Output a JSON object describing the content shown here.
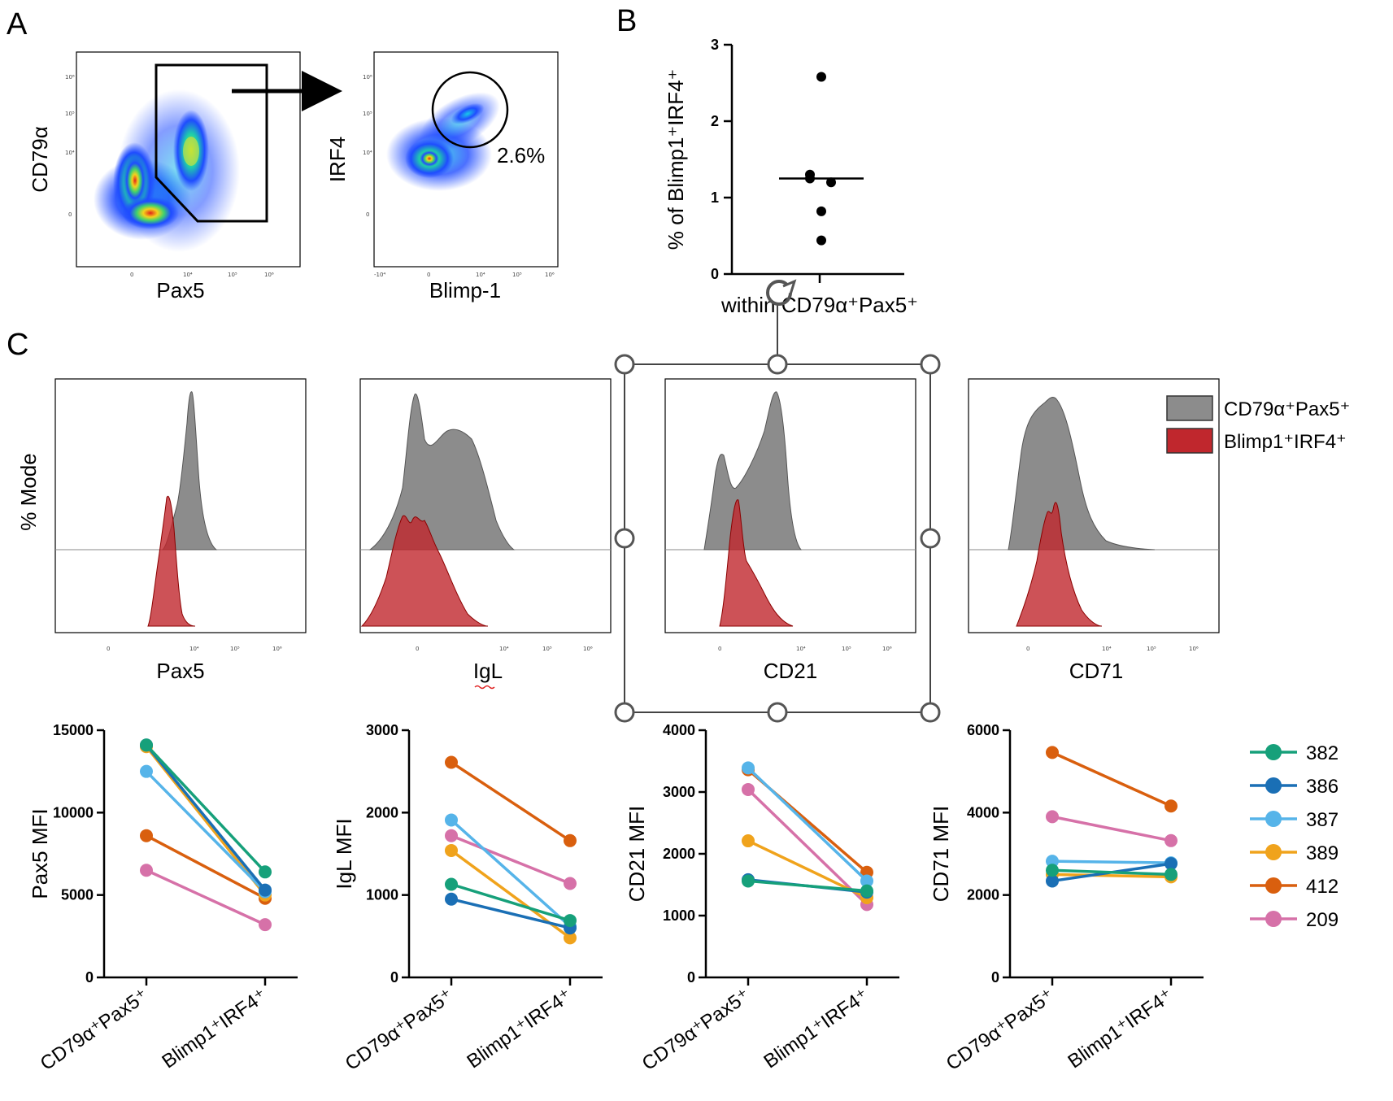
{
  "panels": {
    "A": "A",
    "B": "B",
    "C": "C"
  },
  "panel_a": {
    "plot1": {
      "ylabel": "CD79α",
      "xlabel": "Pax5",
      "yticks": [
        "10⁶",
        "10⁵",
        "10⁴",
        "0"
      ],
      "xticks": [
        "0",
        "10⁴",
        "10⁵",
        "10⁶"
      ]
    },
    "plot2": {
      "ylabel": "IRF4",
      "xlabel": "Blimp-1",
      "gate_pct": "2.6%",
      "yticks": [
        "10⁶",
        "10⁵",
        "10⁴",
        "0"
      ],
      "xticks": [
        "-10⁴",
        "0",
        "10⁴",
        "10⁵",
        "10⁶"
      ]
    }
  },
  "colors": {
    "gray_hist": "#8c8c8c",
    "red_hist": "#c0272d",
    "382": "#16a07a",
    "386": "#1a6fb5",
    "387": "#56b4e9",
    "389": "#f0a31c",
    "412": "#d95f0e",
    "209": "#d671a8"
  },
  "overlay": {
    "icon": "rotate-handle-icon"
  },
  "panel_c": {
    "ylabel": "% Mode",
    "legend": [
      {
        "label": "CD79α⁺Pax5⁺",
        "color": "#8c8c8c"
      },
      {
        "label": "Blimp1⁺IRF4⁺",
        "color": "#c0272d"
      }
    ],
    "histograms": [
      {
        "xlabel": "Pax5",
        "ticks": [
          "0",
          "10⁴",
          "10⁵",
          "10⁶"
        ]
      },
      {
        "xlabel": "IgL",
        "ticks": [
          "0",
          "10⁴",
          "10⁵",
          "10⁶"
        ]
      },
      {
        "xlabel": "CD21",
        "ticks": [
          "0",
          "10⁴",
          "10⁵",
          "10⁶"
        ]
      },
      {
        "xlabel": "CD71",
        "ticks": [
          "0",
          "10⁴",
          "10⁵",
          "10⁶"
        ]
      }
    ]
  },
  "chart_data": [
    {
      "type": "scatter",
      "ylabel": "% of Blimp1⁺IRF4⁺",
      "xlabel": "within CD79α⁺Pax5⁺",
      "ylim": [
        0,
        3
      ],
      "yticks": [
        0,
        1,
        2,
        3
      ],
      "values": [
        2.58,
        1.3,
        1.2,
        1.25,
        0.82,
        0.44
      ],
      "median": 1.25
    },
    {
      "type": "line",
      "ylabel": "Pax5 MFI",
      "categories": [
        "CD79α⁺Pax5⁺",
        "Blimp1⁺IRF4⁺"
      ],
      "ylim": [
        0,
        15000
      ],
      "yticks": [
        0,
        5000,
        10000,
        15000
      ],
      "series": [
        {
          "name": "382",
          "values": [
            14100,
            6400
          ]
        },
        {
          "name": "386",
          "values": [
            14100,
            5300
          ]
        },
        {
          "name": "387",
          "values": [
            12500,
            5200
          ]
        },
        {
          "name": "389",
          "values": [
            14000,
            5000
          ]
        },
        {
          "name": "412",
          "values": [
            8600,
            4800
          ]
        },
        {
          "name": "209",
          "values": [
            6500,
            3200
          ]
        }
      ]
    },
    {
      "type": "line",
      "ylabel": "IgL MFI",
      "categories": [
        "CD79α⁺Pax5⁺",
        "Blimp1⁺IRF4⁺"
      ],
      "ylim": [
        0,
        3000
      ],
      "yticks": [
        0,
        1000,
        2000,
        3000
      ],
      "series": [
        {
          "name": "382",
          "values": [
            1130,
            690
          ]
        },
        {
          "name": "386",
          "values": [
            950,
            600
          ]
        },
        {
          "name": "387",
          "values": [
            1910,
            620
          ]
        },
        {
          "name": "389",
          "values": [
            1540,
            480
          ]
        },
        {
          "name": "412",
          "values": [
            2610,
            1660
          ]
        },
        {
          "name": "209",
          "values": [
            1720,
            1140
          ]
        }
      ]
    },
    {
      "type": "line",
      "ylabel": "CD21 MFI",
      "categories": [
        "CD79α⁺Pax5⁺",
        "Blimp1⁺IRF4⁺"
      ],
      "ylim": [
        0,
        4000
      ],
      "yticks": [
        0,
        1000,
        2000,
        3000,
        4000
      ],
      "series": [
        {
          "name": "382",
          "values": [
            1560,
            1400
          ]
        },
        {
          "name": "386",
          "values": [
            1580,
            1380
          ]
        },
        {
          "name": "387",
          "values": [
            3390,
            1560
          ]
        },
        {
          "name": "389",
          "values": [
            2210,
            1290
          ]
        },
        {
          "name": "412",
          "values": [
            3360,
            1700
          ]
        },
        {
          "name": "209",
          "values": [
            3040,
            1180
          ]
        }
      ]
    },
    {
      "type": "line",
      "ylabel": "CD71 MFI",
      "categories": [
        "CD79α⁺Pax5⁺",
        "Blimp1⁺IRF4⁺"
      ],
      "ylim": [
        0,
        6000
      ],
      "yticks": [
        0,
        2000,
        4000,
        6000
      ],
      "series": [
        {
          "name": "382",
          "values": [
            2600,
            2500
          ]
        },
        {
          "name": "386",
          "values": [
            2340,
            2760
          ]
        },
        {
          "name": "387",
          "values": [
            2820,
            2780
          ]
        },
        {
          "name": "389",
          "values": [
            2500,
            2440
          ]
        },
        {
          "name": "412",
          "values": [
            5460,
            4160
          ]
        },
        {
          "name": "209",
          "values": [
            3900,
            3320
          ]
        }
      ]
    }
  ]
}
